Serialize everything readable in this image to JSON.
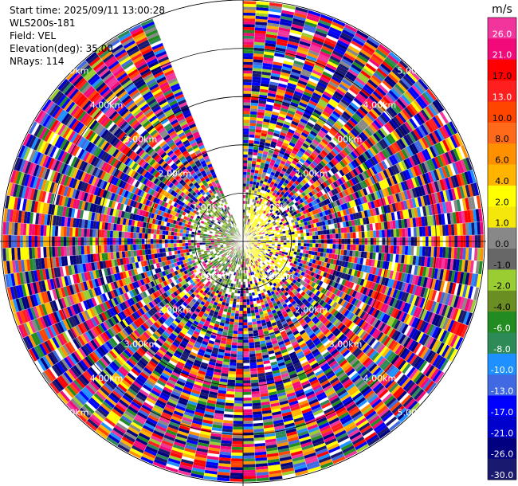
{
  "header": {
    "start_time": "Start time: 2025/09/11 13:00:28",
    "instrument": "WLS200s-181",
    "field": "Field: VEL",
    "elevation": "Elevation(deg): 35.00",
    "nrays": "NRays: 114"
  },
  "range_labels": [
    "1.00km",
    "2.00km",
    "3.00km",
    "4.00km",
    "5.00km"
  ],
  "colorbar": {
    "unit": "m/s",
    "ticks": [
      "26.0",
      "21.0",
      "17.0",
      "13.0",
      "10.0",
      "8.0",
      "6.0",
      "4.0",
      "2.0",
      "1.0",
      "0.0",
      "-1.0",
      "-2.0",
      "-4.0",
      "-6.0",
      "-8.0",
      "-10.0",
      "-13.0",
      "-17.0",
      "-21.0",
      "-26.0",
      "-30.0"
    ],
    "colors": [
      "#f2359d",
      "#f20a7a",
      "#ff0000",
      "#ff1f1f",
      "#ff4500",
      "#ff6a1a",
      "#ff9100",
      "#ffb400",
      "#ffff00",
      "#f5e70a",
      "#888888",
      "#676767",
      "#9acd32",
      "#6b8e23",
      "#228b22",
      "#2e8b57",
      "#1e90ff",
      "#4169e1",
      "#0000ff",
      "#0000cd",
      "#000080",
      "#191970"
    ]
  },
  "chart_data": {
    "type": "ppi",
    "field": "VEL",
    "unit": "m/s",
    "elevation_deg": 35.0,
    "n_rays": 114,
    "max_range_km": 5.0,
    "range_rings_km": [
      1,
      2,
      3,
      4,
      5
    ],
    "color_levels": [
      -30.0,
      -26.0,
      -21.0,
      -17.0,
      -13.0,
      -10.0,
      -8.0,
      -6.0,
      -4.0,
      -2.0,
      -1.0,
      0.0,
      1.0,
      2.0,
      4.0,
      6.0,
      8.0,
      10.0,
      13.0,
      17.0,
      21.0,
      26.0
    ],
    "missing_sector_azimuth_deg": [
      338,
      360
    ],
    "near_field_pattern": {
      "east_sector": "yellow (about 1 to 4 m/s) within 1 km",
      "west_sector": "olive/green (about -1 to -6 m/s) within 1 km"
    },
    "far_field_pattern": "noisy high-magnitude mix of pink, red, blue and navy beyond 1 km"
  }
}
